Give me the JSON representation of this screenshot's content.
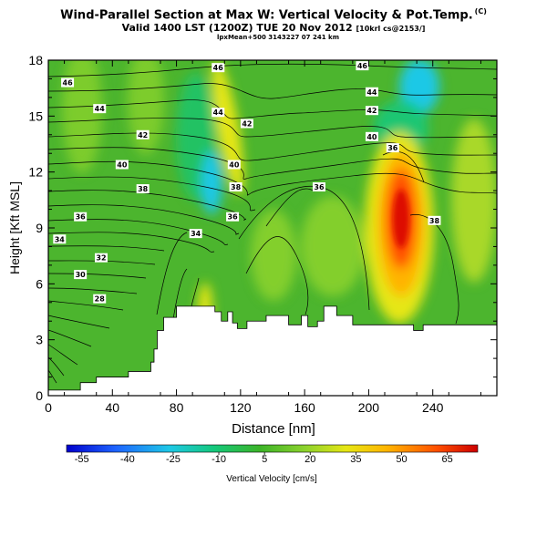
{
  "header": {
    "title": "Wind-Parallel Section at Max W: Vertical Velocity & Pot.Temp.",
    "copyright": "(C)",
    "subtitle": "Valid 1400 LST (1200Z) TUE 20 Nov 2012",
    "subtitle_small": "[10krl cs@2153/]",
    "line3": "lpxMean+500 3143227 07 241 km"
  },
  "chart_data": {
    "type": "heatmap",
    "xlabel": "Distance [nm]",
    "ylabel": "Height [Kft MSL]",
    "xlim": [
      0,
      280
    ],
    "ylim": [
      0,
      18
    ],
    "xticks": [
      "0",
      "40",
      "80",
      "120",
      "160",
      "200",
      "240"
    ],
    "yticks": [
      "0",
      "3",
      "6",
      "9",
      "12",
      "15",
      "18"
    ],
    "colorbar": {
      "label": "Vertical Velocity [cm/s]",
      "ticks": [
        "-55",
        "-40",
        "-25",
        "-10",
        "5",
        "20",
        "35",
        "50",
        "65"
      ],
      "range": [
        -60,
        75
      ]
    },
    "terrain": [
      [
        0,
        0.3
      ],
      [
        20,
        0.3
      ],
      [
        20,
        0.7
      ],
      [
        30,
        0.7
      ],
      [
        30,
        1.0
      ],
      [
        50,
        1.0
      ],
      [
        50,
        1.3
      ],
      [
        64,
        1.3
      ],
      [
        64,
        1.8
      ],
      [
        66,
        1.8
      ],
      [
        66,
        2.5
      ],
      [
        68,
        2.5
      ],
      [
        68,
        3.5
      ],
      [
        72,
        3.5
      ],
      [
        72,
        4.2
      ],
      [
        80,
        4.2
      ],
      [
        80,
        4.8
      ],
      [
        104,
        4.8
      ],
      [
        104,
        4.5
      ],
      [
        108,
        4.5
      ],
      [
        108,
        4.0
      ],
      [
        112,
        4.0
      ],
      [
        112,
        4.5
      ],
      [
        115,
        4.5
      ],
      [
        115,
        3.9
      ],
      [
        118,
        3.9
      ],
      [
        118,
        3.6
      ],
      [
        124,
        3.6
      ],
      [
        124,
        4.0
      ],
      [
        136,
        4.0
      ],
      [
        136,
        4.3
      ],
      [
        150,
        4.3
      ],
      [
        150,
        3.8
      ],
      [
        158,
        3.8
      ],
      [
        158,
        4.3
      ],
      [
        162,
        4.3
      ],
      [
        162,
        3.7
      ],
      [
        168,
        3.7
      ],
      [
        168,
        4.0
      ],
      [
        172,
        4.0
      ],
      [
        172,
        4.8
      ],
      [
        180,
        4.8
      ],
      [
        180,
        4.3
      ],
      [
        190,
        4.3
      ],
      [
        190,
        3.8
      ],
      [
        200,
        3.8
      ],
      [
        200,
        3.8
      ],
      [
        210,
        3.8
      ],
      [
        210,
        3.8
      ],
      [
        228,
        3.8
      ],
      [
        228,
        3.5
      ],
      [
        234,
        3.5
      ],
      [
        234,
        3.8
      ],
      [
        280,
        3.8
      ]
    ],
    "contour_labels": [
      {
        "text": "46",
        "x": 12,
        "y": 16.8
      },
      {
        "text": "44",
        "x": 32,
        "y": 15.4
      },
      {
        "text": "42",
        "x": 59,
        "y": 14.0
      },
      {
        "text": "40",
        "x": 46,
        "y": 12.4
      },
      {
        "text": "38",
        "x": 59,
        "y": 11.1
      },
      {
        "text": "36",
        "x": 20,
        "y": 9.6
      },
      {
        "text": "34",
        "x": 7,
        "y": 8.4
      },
      {
        "text": "32",
        "x": 33,
        "y": 7.4
      },
      {
        "text": "30",
        "x": 20,
        "y": 6.5
      },
      {
        "text": "28",
        "x": 32,
        "y": 5.2
      },
      {
        "text": "34",
        "x": 92,
        "y": 8.7
      },
      {
        "text": "36",
        "x": 115,
        "y": 9.6
      },
      {
        "text": "38",
        "x": 117,
        "y": 11.2
      },
      {
        "text": "40",
        "x": 116,
        "y": 12.4
      },
      {
        "text": "42",
        "x": 124,
        "y": 14.6
      },
      {
        "text": "44",
        "x": 106,
        "y": 15.2
      },
      {
        "text": "46",
        "x": 106,
        "y": 17.6
      },
      {
        "text": "36",
        "x": 169,
        "y": 11.2
      },
      {
        "text": "36",
        "x": 215,
        "y": 13.3
      },
      {
        "text": "40",
        "x": 202,
        "y": 13.9
      },
      {
        "text": "42",
        "x": 202,
        "y": 15.3
      },
      {
        "text": "44",
        "x": 202,
        "y": 16.3
      },
      {
        "text": "46",
        "x": 196,
        "y": 17.7
      },
      {
        "text": "38",
        "x": 241,
        "y": 9.4
      }
    ]
  }
}
